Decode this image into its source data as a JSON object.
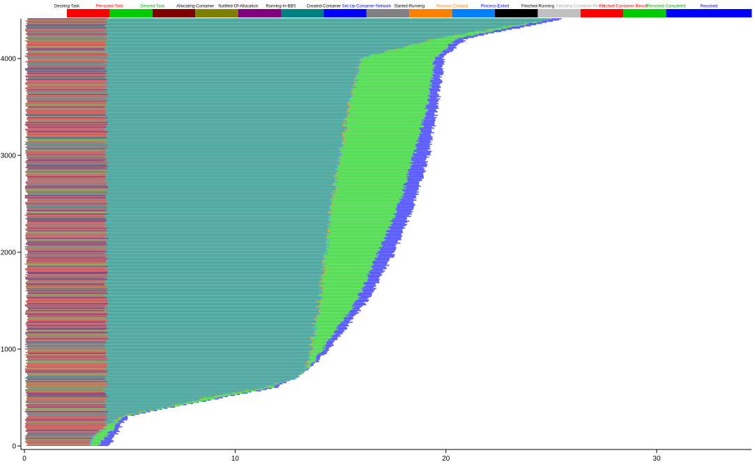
{
  "chart_data": {
    "type": "bar",
    "orientation": "horizontal-stacked-timeline",
    "title": "",
    "xlabel": "",
    "ylabel": "",
    "xlim": [
      0,
      34.5
    ],
    "ylim": [
      0,
      4410
    ],
    "x_ticks": [
      0,
      10,
      20,
      30
    ],
    "y_ticks": [
      0,
      1000,
      2000,
      3000,
      4000
    ],
    "grid": false,
    "legend_position": "top",
    "legend": [
      {
        "name": "Desiring-Task",
        "color": "#ff0000",
        "label_color": "#000000"
      },
      {
        "name": "Persisted-Task",
        "color": "#00cc00",
        "label_color": "#ff0000"
      },
      {
        "name": "Desired-Task",
        "color": "#800000",
        "label_color": "#00aa00"
      },
      {
        "name": "Allocating-Container",
        "color": "#808000",
        "label_color": "#000000"
      },
      {
        "name": "Notified-Of-Allocation",
        "color": "#800080",
        "label_color": "#000000"
      },
      {
        "name": "Running-In-BBS",
        "color": "#008080",
        "label_color": "#000000"
      },
      {
        "name": "Created-Container",
        "color": "#0000ff",
        "label_color": "#000000"
      },
      {
        "name": "Set-Up-Container-Network",
        "color": "#808080",
        "label_color": "#0000ff"
      },
      {
        "name": "Started-Running",
        "color": "#ff8000",
        "label_color": "#000000"
      },
      {
        "name": "Process-Created",
        "color": "#0080ff",
        "label_color": "#ff8000"
      },
      {
        "name": "Process-Exited",
        "color": "#000000",
        "label_color": "#0000ff"
      },
      {
        "name": "Finished-Running",
        "color": "#c0c0c0",
        "label_color": "#000000"
      },
      {
        "name": "Fetching-Container-Result",
        "color": "#ff0000",
        "label_color": "#aaaaaa"
      },
      {
        "name": "Fetched-Container-Result",
        "color": "#00cc00",
        "label_color": "#ff0000"
      },
      {
        "name": "Persisted-Completed",
        "color": "#0000ff",
        "label_color": "#00aa00"
      },
      {
        "name": "Resolved",
        "color": "#0000ff",
        "label_color": "#0000ff"
      }
    ],
    "series_summary": {
      "tasks": 4400,
      "bands": [
        {
          "name": "Desiring-Task to Running-In-BBS",
          "approx_end_x": 3.9
        },
        {
          "name": "Running-In-BBS (teal) end",
          "x_at_task": [
            [
              0,
              3.2
            ],
            [
              100,
              3.3
            ],
            [
              300,
              4.6
            ],
            [
              500,
              8.8
            ],
            [
              600,
              11.5
            ],
            [
              700,
              13.0
            ],
            [
              800,
              13.4
            ],
            [
              1000,
              13.6
            ],
            [
              1500,
              14.0
            ],
            [
              2000,
              14.3
            ],
            [
              2500,
              14.6
            ],
            [
              3000,
              15.0
            ],
            [
              3500,
              15.4
            ],
            [
              4000,
              16.0
            ],
            [
              4200,
              19.5
            ],
            [
              4330,
              23.0
            ],
            [
              4400,
              25.0
            ]
          ]
        },
        {
          "name": "Process-Created (green) end",
          "x_at_task": [
            [
              0,
              3.5
            ],
            [
              300,
              4.7
            ],
            [
              600,
              11.8
            ],
            [
              800,
              13.5
            ],
            [
              1000,
              14.2
            ],
            [
              1500,
              15.8
            ],
            [
              2000,
              16.8
            ],
            [
              2500,
              17.8
            ],
            [
              3000,
              18.5
            ],
            [
              3500,
              19.1
            ],
            [
              4000,
              19.5
            ],
            [
              4200,
              20.5
            ],
            [
              4400,
              25.0
            ]
          ]
        },
        {
          "name": "Resolved (blue) end",
          "x_at_task": [
            [
              0,
              4.0
            ],
            [
              300,
              4.9
            ],
            [
              600,
              12.0
            ],
            [
              800,
              13.6
            ],
            [
              1000,
              14.5
            ],
            [
              1500,
              16.3
            ],
            [
              2000,
              17.6
            ],
            [
              2500,
              18.5
            ],
            [
              3000,
              19.2
            ],
            [
              3500,
              19.6
            ],
            [
              4000,
              19.9
            ],
            [
              4200,
              21.0
            ],
            [
              4400,
              25.5
            ]
          ]
        }
      ]
    }
  }
}
